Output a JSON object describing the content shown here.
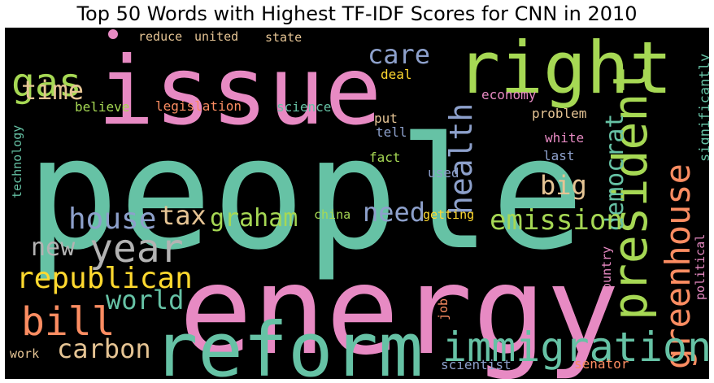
{
  "chart_data": {
    "type": "wordcloud",
    "title": "Top 50 Words with Highest TF-IDF Scores for CNN in 2010",
    "background": "#000000",
    "palette": [
      "#66c2a5",
      "#fc8d62",
      "#8da0cb",
      "#e78ac3",
      "#a6d854",
      "#ffd92f",
      "#e5c494",
      "#b3b3b3"
    ],
    "words": [
      {
        "text": "people",
        "weight": 1.0,
        "color": "#66c2a5"
      },
      {
        "text": "energy",
        "weight": 0.95,
        "color": "#e78ac3"
      },
      {
        "text": "issue",
        "weight": 0.78,
        "color": "#e78ac3"
      },
      {
        "text": "reform",
        "weight": 0.68,
        "color": "#66c2a5"
      },
      {
        "text": "right",
        "weight": 0.62,
        "color": "#a6d854"
      },
      {
        "text": "president",
        "weight": 0.42,
        "color": "#a6d854"
      },
      {
        "text": "greenhouse",
        "weight": 0.4,
        "color": "#fc8d62"
      },
      {
        "text": "immigration",
        "weight": 0.38,
        "color": "#66c2a5"
      },
      {
        "text": "year",
        "weight": 0.36,
        "color": "#b3b3b3"
      },
      {
        "text": "bill",
        "weight": 0.34,
        "color": "#fc8d62"
      },
      {
        "text": "gas",
        "weight": 0.32,
        "color": "#a6d854"
      },
      {
        "text": "health",
        "weight": 0.3,
        "color": "#8da0cb"
      },
      {
        "text": "republican",
        "weight": 0.28,
        "color": "#ffd92f"
      },
      {
        "text": "democrat",
        "weight": 0.27,
        "color": "#66c2a5"
      },
      {
        "text": "emission",
        "weight": 0.26,
        "color": "#a6d854"
      },
      {
        "text": "house",
        "weight": 0.26,
        "color": "#8da0cb"
      },
      {
        "text": "carbon",
        "weight": 0.25,
        "color": "#e5c494"
      },
      {
        "text": "care",
        "weight": 0.25,
        "color": "#8da0cb"
      },
      {
        "text": "time",
        "weight": 0.24,
        "color": "#e5c494"
      },
      {
        "text": "world",
        "weight": 0.24,
        "color": "#66c2a5"
      },
      {
        "text": "graham",
        "weight": 0.23,
        "color": "#a6d854"
      },
      {
        "text": "need",
        "weight": 0.23,
        "color": "#8da0cb"
      },
      {
        "text": "tax",
        "weight": 0.23,
        "color": "#e5c494"
      },
      {
        "text": "big",
        "weight": 0.22,
        "color": "#e5c494"
      },
      {
        "text": "new",
        "weight": 0.2,
        "color": "#b3b3b3"
      },
      {
        "text": "significantly",
        "weight": 0.1,
        "color": "#66c2a5"
      },
      {
        "text": "legislation",
        "weight": 0.1,
        "color": "#fc8d62"
      },
      {
        "text": "economy",
        "weight": 0.1,
        "color": "#e78ac3"
      },
      {
        "text": "problem",
        "weight": 0.1,
        "color": "#e5c494"
      },
      {
        "text": "put",
        "weight": 0.1,
        "color": "#e5c494"
      },
      {
        "text": "white",
        "weight": 0.1,
        "color": "#e78ac3"
      },
      {
        "text": "science",
        "weight": 0.09,
        "color": "#66c2a5"
      },
      {
        "text": "believe",
        "weight": 0.09,
        "color": "#a6d854"
      },
      {
        "text": "deal",
        "weight": 0.09,
        "color": "#ffd92f"
      },
      {
        "text": "fact",
        "weight": 0.09,
        "color": "#a6d854"
      },
      {
        "text": "tell",
        "weight": 0.09,
        "color": "#8da0cb"
      },
      {
        "text": "last",
        "weight": 0.09,
        "color": "#8da0cb"
      },
      {
        "text": "used",
        "weight": 0.09,
        "color": "#8da0cb"
      },
      {
        "text": "reduce",
        "weight": 0.08,
        "color": "#e5c494"
      },
      {
        "text": "united",
        "weight": 0.08,
        "color": "#e5c494"
      },
      {
        "text": "state",
        "weight": 0.08,
        "color": "#e5c494"
      },
      {
        "text": "technology",
        "weight": 0.08,
        "color": "#66c2a5"
      },
      {
        "text": "china",
        "weight": 0.08,
        "color": "#a6d854"
      },
      {
        "text": "getting",
        "weight": 0.08,
        "color": "#ffd92f"
      },
      {
        "text": "scientist",
        "weight": 0.08,
        "color": "#8da0cb"
      },
      {
        "text": "senator",
        "weight": 0.08,
        "color": "#fc8d62"
      },
      {
        "text": "work",
        "weight": 0.08,
        "color": "#e5c494"
      },
      {
        "text": "job",
        "weight": 0.08,
        "color": "#fc8d62"
      },
      {
        "text": "country",
        "weight": 0.08,
        "color": "#e78ac3"
      },
      {
        "text": "political",
        "weight": 0.08,
        "color": "#e78ac3"
      }
    ]
  }
}
